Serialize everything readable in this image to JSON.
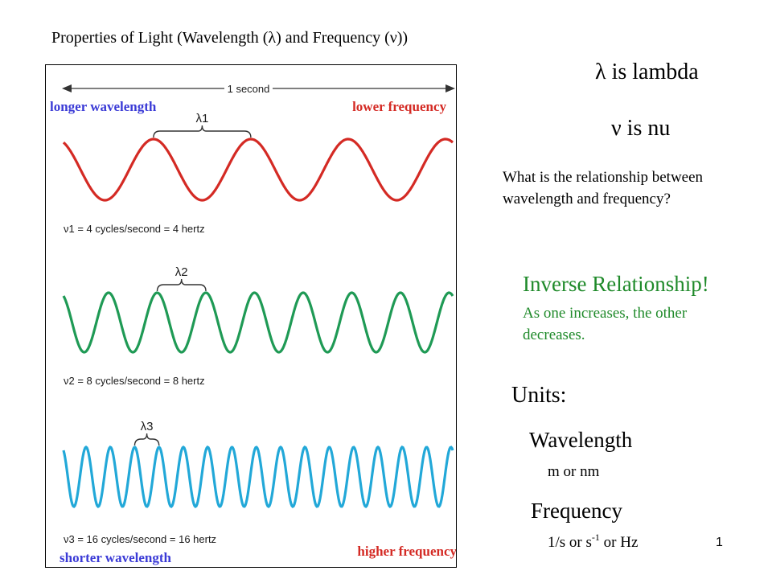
{
  "slide": {
    "title": "Properties of Light (Wavelength (λ) and Frequency (ν))",
    "page_number": "1"
  },
  "figure": {
    "top_label": "1 second",
    "waves": [
      {
        "cycles_per_second": 4,
        "color": "#d42a24",
        "lambda_label": "λ1",
        "caption": "ν1 = 4 cycles/second = 4 hertz"
      },
      {
        "cycles_per_second": 8,
        "color": "#1f9a55",
        "lambda_label": "λ2",
        "caption": "ν2 = 8 cycles/second = 8 hertz"
      },
      {
        "cycles_per_second": 16,
        "color": "#22a8d8",
        "lambda_label": "λ3",
        "caption": "ν3 = 16 cycles/second = 16 hertz"
      }
    ],
    "corner_labels": {
      "top_left": "longer wavelength",
      "top_right": "lower frequency",
      "bottom_left": "shorter wavelength",
      "bottom_right": "higher frequency"
    },
    "colors": {
      "blue_label": "#3a3ad6",
      "red_label": "#d42a24"
    }
  },
  "definitions": {
    "lambda": "λ is lambda",
    "nu": "ν is nu"
  },
  "question": "What is the relationship between wavelength and frequency?",
  "answer": {
    "title": "Inverse Relationship!",
    "description": "As one increases, the other decreases."
  },
  "units": {
    "title": "Units:",
    "wavelength_title": "Wavelength",
    "wavelength_units": "m or nm",
    "frequency_title": "Frequency",
    "frequency_units_prefix": "1/s or s",
    "frequency_units_exp": "-1",
    "frequency_units_suffix": " or Hz"
  }
}
